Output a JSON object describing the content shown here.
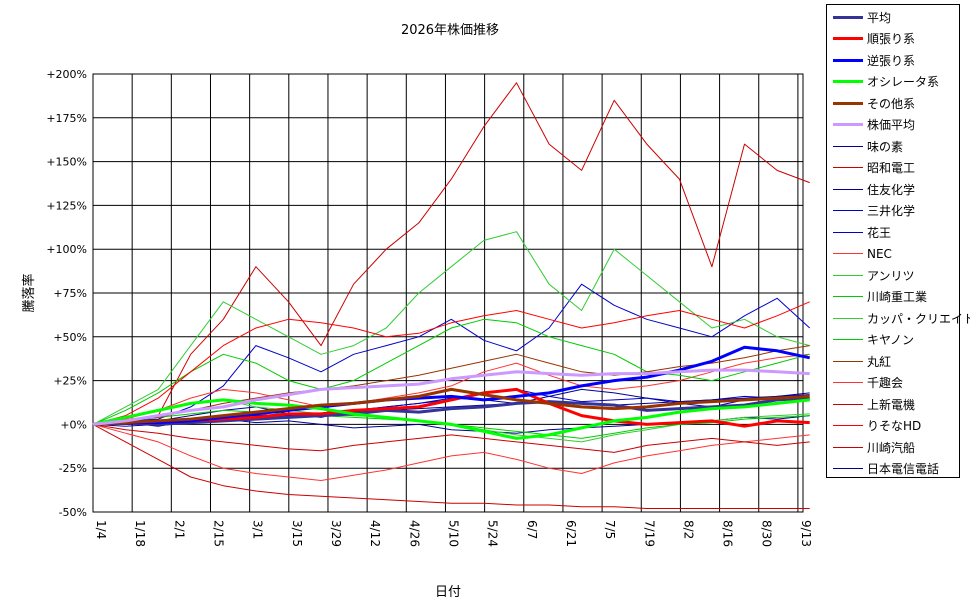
{
  "chart_data": {
    "type": "line",
    "title": "2026年株価推移",
    "xlabel": "日付",
    "ylabel": "騰落率",
    "x_start": "2026-01-04",
    "x_end": "2026-09-13",
    "xticks": [
      "1/4",
      "1/18",
      "2/1",
      "2/15",
      "3/1",
      "3/15",
      "3/29",
      "4/12",
      "4/26",
      "5/10",
      "5/24",
      "6/7",
      "6/21",
      "7/5",
      "7/19",
      "8/2",
      "8/16",
      "8/30",
      "9/13"
    ],
    "yticks": [
      "-50%",
      "-25%",
      "+0%",
      "+25%",
      "+50%",
      "+75%",
      "+100%",
      "+125%",
      "+150%",
      "+175%",
      "+200%"
    ],
    "ylim": [
      -50,
      200
    ],
    "grid": true,
    "legend_position": "right",
    "series": [
      {
        "name": "平均",
        "color": "#333399",
        "width": 3,
        "values": [
          0,
          1,
          0,
          1,
          2,
          3,
          4,
          5,
          6,
          8,
          7,
          9,
          10,
          12,
          13,
          12,
          11,
          8,
          9,
          10,
          11,
          14,
          15
        ]
      },
      {
        "name": "順張り系",
        "color": "#ff0000",
        "width": 3,
        "values": [
          0,
          1,
          1,
          2,
          3,
          4,
          6,
          6,
          8,
          9,
          10,
          14,
          18,
          20,
          12,
          5,
          2,
          0,
          1,
          2,
          -1,
          2,
          1
        ]
      },
      {
        "name": "逆張り系",
        "color": "#0000ff",
        "width": 3,
        "values": [
          0,
          1,
          1,
          2,
          4,
          6,
          8,
          10,
          12,
          14,
          15,
          16,
          14,
          16,
          18,
          22,
          25,
          27,
          31,
          36,
          44,
          42,
          38
        ]
      },
      {
        "name": "オシレータ系",
        "color": "#00ff00",
        "width": 3,
        "values": [
          0,
          4,
          8,
          12,
          14,
          12,
          11,
          9,
          6,
          4,
          2,
          0,
          -4,
          -8,
          -6,
          -2,
          2,
          4,
          7,
          9,
          10,
          12,
          14
        ]
      },
      {
        "name": "その他系",
        "color": "#993300",
        "width": 3,
        "values": [
          0,
          1,
          2,
          3,
          5,
          7,
          9,
          11,
          12,
          14,
          16,
          20,
          17,
          14,
          12,
          10,
          9,
          10,
          12,
          13,
          14,
          15,
          16
        ]
      },
      {
        "name": "株価平均",
        "color": "#cc99ff",
        "width": 3,
        "values": [
          0,
          2,
          5,
          8,
          10,
          14,
          17,
          20,
          21,
          22,
          23,
          26,
          28,
          30,
          29,
          28,
          29,
          29,
          30,
          31,
          31,
          30,
          29
        ]
      },
      {
        "name": "味の素",
        "color": "#000099",
        "width": 1,
        "values": [
          0,
          1,
          -1,
          2,
          3,
          1,
          2,
          0,
          -2,
          -1,
          0,
          -3,
          -4,
          -5,
          -3,
          -2,
          -1,
          0,
          1,
          2,
          4,
          3,
          5
        ]
      },
      {
        "name": "昭和電工",
        "color": "#cc0000",
        "width": 1,
        "values": [
          0,
          2,
          5,
          40,
          60,
          90,
          70,
          45,
          80,
          100,
          115,
          140,
          170,
          195,
          160,
          145,
          185,
          160,
          140,
          90,
          160,
          145,
          138
        ]
      },
      {
        "name": "住友化学",
        "color": "#000099",
        "width": 1,
        "values": [
          0,
          1,
          2,
          5,
          8,
          10,
          6,
          4,
          8,
          10,
          12,
          15,
          14,
          12,
          16,
          20,
          18,
          15,
          12,
          10,
          14,
          16,
          18
        ]
      },
      {
        "name": "三井化学",
        "color": "#0000cc",
        "width": 1,
        "values": [
          0,
          2,
          3,
          10,
          22,
          45,
          38,
          30,
          40,
          45,
          50,
          60,
          48,
          42,
          55,
          80,
          68,
          60,
          55,
          50,
          62,
          72,
          55
        ]
      },
      {
        "name": "花王",
        "color": "#0000cc",
        "width": 1,
        "values": [
          0,
          -1,
          0,
          1,
          2,
          4,
          5,
          6,
          8,
          10,
          12,
          14,
          18,
          20,
          16,
          13,
          14,
          15,
          13,
          14,
          16,
          15,
          14
        ]
      },
      {
        "name": "NEC",
        "color": "#ff3333",
        "width": 1,
        "values": [
          0,
          3,
          8,
          15,
          20,
          18,
          14,
          10,
          12,
          15,
          18,
          22,
          30,
          35,
          28,
          22,
          20,
          22,
          25,
          30,
          35,
          38,
          40
        ]
      },
      {
        "name": "アンリツ",
        "color": "#33cc33",
        "width": 1,
        "values": [
          0,
          10,
          20,
          45,
          70,
          60,
          50,
          40,
          45,
          55,
          75,
          90,
          105,
          110,
          80,
          65,
          100,
          85,
          70,
          55,
          60,
          50,
          45
        ]
      },
      {
        "name": "川崎重工業",
        "color": "#00cc00",
        "width": 1,
        "values": [
          0,
          8,
          18,
          30,
          40,
          35,
          25,
          20,
          25,
          35,
          45,
          55,
          60,
          58,
          50,
          45,
          40,
          30,
          28,
          25,
          30,
          35,
          40
        ]
      },
      {
        "name": "カッパ・クリエイト",
        "color": "#33cc33",
        "width": 1,
        "values": [
          0,
          4,
          8,
          12,
          14,
          10,
          8,
          6,
          5,
          4,
          2,
          0,
          -3,
          -6,
          -8,
          -10,
          -6,
          -3,
          0,
          2,
          4,
          5,
          6
        ]
      },
      {
        "name": "キヤノン",
        "color": "#00cc00",
        "width": 1,
        "values": [
          0,
          2,
          4,
          6,
          8,
          7,
          6,
          5,
          4,
          3,
          2,
          0,
          -2,
          -4,
          -6,
          -8,
          -5,
          -2,
          0,
          1,
          3,
          4,
          5
        ]
      },
      {
        "name": "丸紅",
        "color": "#993300",
        "width": 1,
        "values": [
          0,
          2,
          4,
          8,
          12,
          15,
          18,
          20,
          22,
          25,
          28,
          32,
          36,
          40,
          35,
          30,
          28,
          30,
          33,
          35,
          38,
          42,
          45
        ]
      },
      {
        "name": "千趣会",
        "color": "#ff3333",
        "width": 1,
        "values": [
          0,
          -5,
          -10,
          -18,
          -25,
          -28,
          -30,
          -32,
          -29,
          -26,
          -22,
          -18,
          -16,
          -20,
          -25,
          -28,
          -22,
          -18,
          -15,
          -12,
          -10,
          -8,
          -6
        ]
      },
      {
        "name": "上新電機",
        "color": "#cc0000",
        "width": 1,
        "values": [
          0,
          -10,
          -20,
          -30,
          -35,
          -38,
          -40,
          -41,
          -42,
          -43,
          -44,
          -45,
          -45,
          -46,
          -46,
          -47,
          -47,
          -48,
          -48,
          -48,
          -48,
          -48,
          -48
        ]
      },
      {
        "name": "りそなHD",
        "color": "#ff0000",
        "width": 1,
        "values": [
          0,
          5,
          15,
          30,
          45,
          55,
          60,
          58,
          55,
          50,
          52,
          58,
          62,
          65,
          60,
          55,
          58,
          62,
          65,
          60,
          55,
          62,
          70
        ]
      },
      {
        "name": "川崎汽船",
        "color": "#cc0000",
        "width": 1,
        "values": [
          0,
          -3,
          -5,
          -8,
          -10,
          -12,
          -14,
          -15,
          -12,
          -10,
          -8,
          -6,
          -8,
          -10,
          -12,
          -14,
          -16,
          -12,
          -10,
          -8,
          -10,
          -12,
          -10
        ]
      },
      {
        "name": "日本電信電話",
        "color": "#000099",
        "width": 1,
        "values": [
          0,
          1,
          2,
          3,
          4,
          5,
          6,
          6,
          7,
          8,
          9,
          10,
          11,
          12,
          13,
          12,
          11,
          12,
          13,
          14,
          15,
          16,
          17
        ]
      }
    ]
  }
}
